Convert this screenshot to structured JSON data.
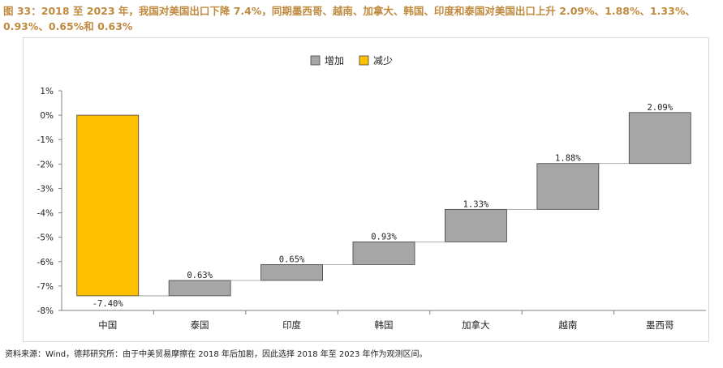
{
  "title": "图 33：2018 至 2023 年，我国对美国出口下降 7.4%，同期墨西哥、越南、加拿大、韩国、印度和泰国对美国出口上升 2.09%、1.88%、1.33%、0.93%、0.65%和 0.63%",
  "source": "资料来源：Wind，德邦研究所：由于中美贸易摩擦在 2018 年后加剧，因此选择 2018 年至 2023 年作为观测区间。",
  "colors": {
    "increase": "#a6a6a6",
    "decrease": "#ffc000",
    "border": "#404040"
  },
  "chart_data": {
    "type": "bar",
    "subtype": "waterfall",
    "categories": [
      "中国",
      "泰国",
      "印度",
      "韩国",
      "加拿大",
      "越南",
      "墨西哥"
    ],
    "values": [
      -7.4,
      0.63,
      0.65,
      0.93,
      1.33,
      1.88,
      2.09
    ],
    "value_labels": [
      "-7.40%",
      "0.63%",
      "0.65%",
      "0.93%",
      "1.33%",
      "1.88%",
      "2.09%"
    ],
    "ylim": [
      -8,
      1
    ],
    "yticks": [
      1,
      0,
      -1,
      -2,
      -3,
      -4,
      -5,
      -6,
      -7,
      -8
    ],
    "ytick_labels": [
      "1%",
      "0%",
      "-1%",
      "-2%",
      "-3%",
      "-4%",
      "-5%",
      "-6%",
      "-7%",
      "-8%"
    ],
    "legend": [
      {
        "name": "增加",
        "color": "#a6a6a6"
      },
      {
        "name": "减少",
        "color": "#ffc000"
      }
    ],
    "legend_position": "top-center",
    "grid": false
  }
}
